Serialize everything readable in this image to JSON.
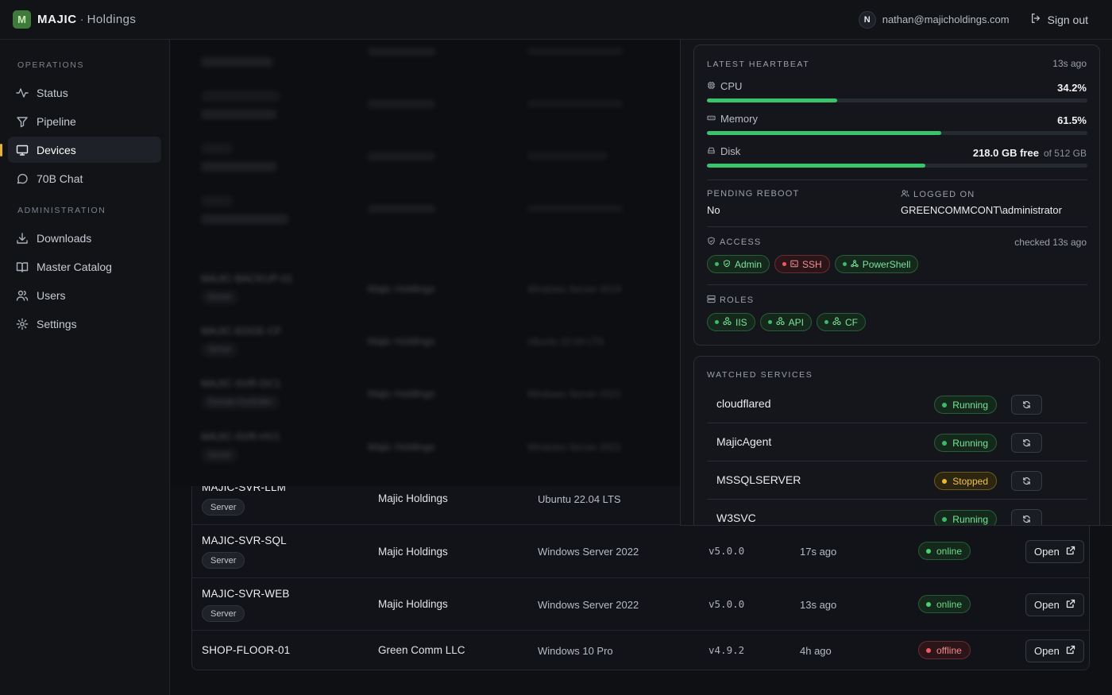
{
  "header": {
    "logo_letter": "M",
    "brand": "MAJIC",
    "brand_separator": "·",
    "brand_sub": "Holdings",
    "avatar_initial": "N",
    "user_email": "nathan@majicholdings.com",
    "signout_label": "Sign out"
  },
  "sidebar": {
    "operations_title": "OPERATIONS",
    "operations": [
      {
        "label": "Status",
        "icon": "activity-icon"
      },
      {
        "label": "Pipeline",
        "icon": "funnel-icon"
      },
      {
        "label": "Devices",
        "icon": "monitor-icon",
        "active": true
      },
      {
        "label": "70B Chat",
        "icon": "chat-icon"
      }
    ],
    "administration_title": "ADMINISTRATION",
    "administration": [
      {
        "label": "Downloads",
        "icon": "download-icon"
      },
      {
        "label": "Master Catalog",
        "icon": "book-icon"
      },
      {
        "label": "Users",
        "icon": "users-icon"
      },
      {
        "label": "Settings",
        "icon": "gear-icon"
      }
    ],
    "accent_color": "#e6b339"
  },
  "blurred_rows": [
    {
      "name": "MAJIC-BACKUP-01",
      "type": "Server",
      "owner": "Majic Holdings",
      "os": "Windows Server 2019"
    },
    {
      "name": "MAJIC-EDGE-CF",
      "type": "Server",
      "owner": "Majic Holdings",
      "os": "Ubuntu 22.04 LTS"
    },
    {
      "name": "MAJIC-SVR-DC1",
      "type": "Domain Controller",
      "owner": "Majic Holdings",
      "os": "Windows Server 2022"
    },
    {
      "name": "MAJIC-SVR-HV1",
      "type": "Server",
      "owner": "Majic Holdings",
      "os": "Windows Server 2022"
    }
  ],
  "devices": [
    {
      "name": "MAJIC-SVR-LLM",
      "type": "Server",
      "owner": "Majic Holdings",
      "os": "Ubuntu 22.04 LTS",
      "version": "",
      "last_seen": "",
      "status": ""
    },
    {
      "name": "MAJIC-SVR-SQL",
      "type": "Server",
      "owner": "Majic Holdings",
      "os": "Windows Server 2022",
      "version": "v5.0.0",
      "last_seen": "17s ago",
      "status": "online",
      "action": "Open"
    },
    {
      "name": "MAJIC-SVR-WEB",
      "type": "Server",
      "owner": "Majic Holdings",
      "os": "Windows Server 2022",
      "version": "v5.0.0",
      "last_seen": "13s ago",
      "status": "online",
      "action": "Open"
    },
    {
      "name": "SHOP-FLOOR-01",
      "type": "",
      "owner": "Green Comm LLC",
      "os": "Windows 10 Pro",
      "version": "v4.9.2",
      "last_seen": "4h ago",
      "status": "offline",
      "action": "Open"
    }
  ],
  "heartbeat": {
    "title": "LATEST HEARTBEAT",
    "age": "13s ago",
    "cpu": {
      "label": "CPU",
      "value": "34.2%",
      "fraction": 0.342
    },
    "memory": {
      "label": "Memory",
      "value": "61.5%",
      "fraction": 0.615
    },
    "disk": {
      "label": "Disk",
      "value": "218.0 GB free",
      "of": "of 512 GB",
      "fraction": 0.574
    },
    "pending_reboot_label": "PENDING REBOOT",
    "pending_reboot_value": "No",
    "logged_on_label": "LOGGED ON",
    "logged_on_value": "GREENCOMMCONT\\administrator",
    "access_label": "ACCESS",
    "access_checked": "checked 13s ago",
    "access": [
      {
        "label": "Admin",
        "state": "ok",
        "icon": "shield-icon"
      },
      {
        "label": "SSH",
        "state": "fail",
        "icon": "terminal-icon"
      },
      {
        "label": "PowerShell",
        "state": "ok",
        "icon": "network-icon"
      }
    ],
    "roles_label": "ROLES",
    "roles": [
      {
        "label": "IIS"
      },
      {
        "label": "API"
      },
      {
        "label": "CF"
      }
    ]
  },
  "watched_services": {
    "title": "WATCHED SERVICES",
    "items": [
      {
        "name": "cloudflared",
        "status": "Running"
      },
      {
        "name": "MajicAgent",
        "status": "Running"
      },
      {
        "name": "MSSQLSERVER",
        "status": "Stopped"
      },
      {
        "name": "W3SVC",
        "status": "Running"
      }
    ]
  },
  "colors": {
    "online": "#4cd174",
    "offline": "#ef5a62",
    "stopped": "#f1b82e",
    "bar": "#38c46a"
  }
}
